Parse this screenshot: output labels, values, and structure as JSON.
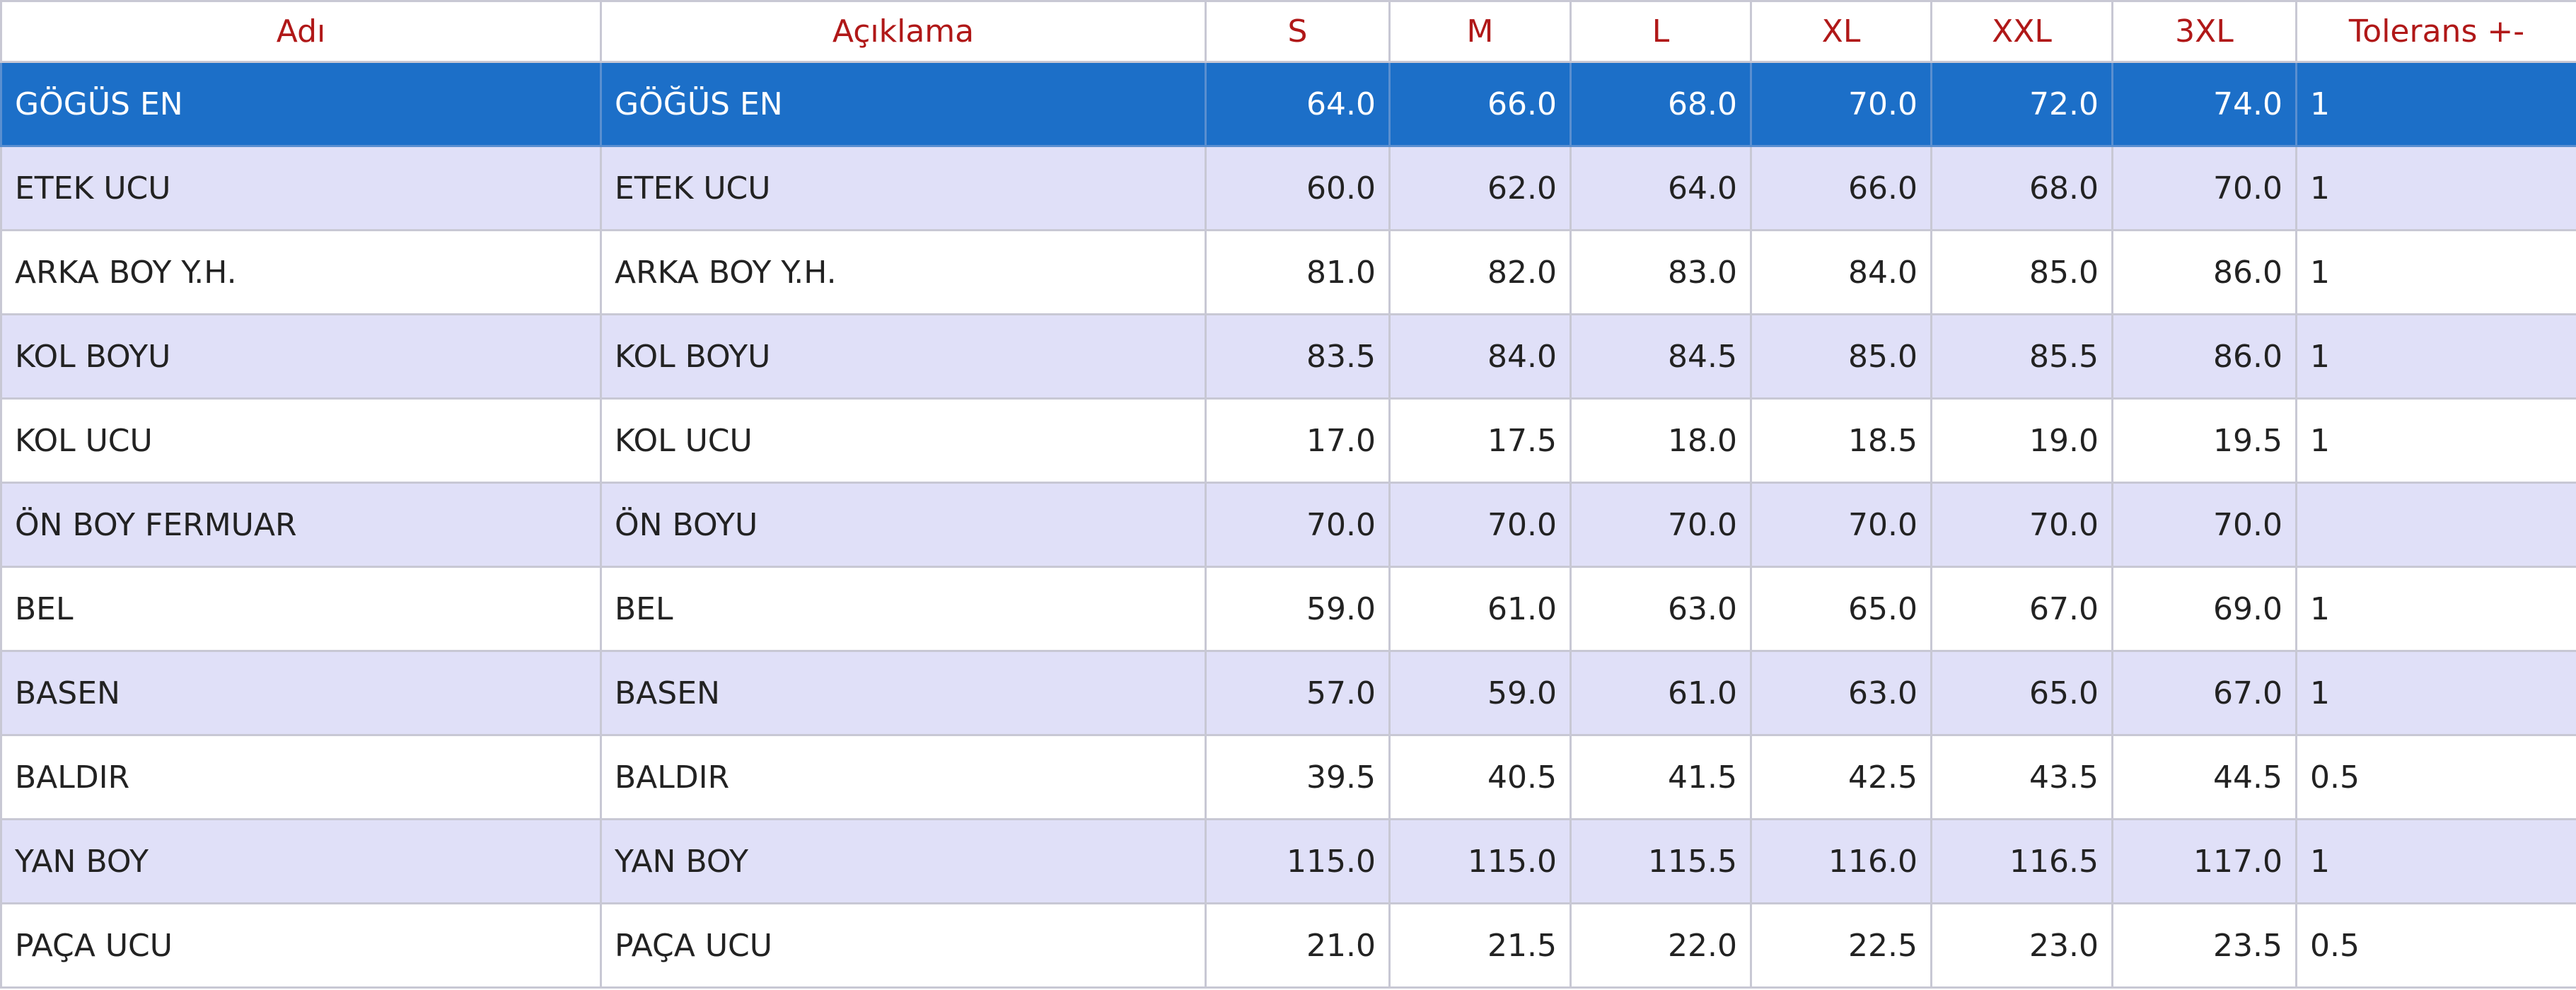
{
  "table": {
    "headers": [
      "Adı",
      "Açıklama",
      "S",
      "M",
      "L",
      "XL",
      "XXL",
      "3XL",
      "Tolerans +-"
    ],
    "selected_row": 0,
    "rows": [
      [
        "GÖGÜS EN",
        "GÖĞÜS EN",
        "64.0",
        "66.0",
        "68.0",
        "70.0",
        "72.0",
        "74.0",
        "1"
      ],
      [
        "ETEK UCU",
        "ETEK UCU",
        "60.0",
        "62.0",
        "64.0",
        "66.0",
        "68.0",
        "70.0",
        "1"
      ],
      [
        "ARKA BOY Y.H.",
        "ARKA BOY Y.H.",
        "81.0",
        "82.0",
        "83.0",
        "84.0",
        "85.0",
        "86.0",
        "1"
      ],
      [
        "KOL BOYU",
        "KOL BOYU",
        "83.5",
        "84.0",
        "84.5",
        "85.0",
        "85.5",
        "86.0",
        "1"
      ],
      [
        "KOL UCU",
        "KOL UCU",
        "17.0",
        "17.5",
        "18.0",
        "18.5",
        "19.0",
        "19.5",
        "1"
      ],
      [
        "ÖN BOY FERMUAR",
        "ÖN BOYU",
        "70.0",
        "70.0",
        "70.0",
        "70.0",
        "70.0",
        "70.0",
        null
      ],
      [
        "BEL",
        "BEL",
        "59.0",
        "61.0",
        "63.0",
        "65.0",
        "67.0",
        "69.0",
        "1"
      ],
      [
        "BASEN",
        "BASEN",
        "57.0",
        "59.0",
        "61.0",
        "63.0",
        "65.0",
        "67.0",
        "1"
      ],
      [
        "BALDIR",
        "BALDIR",
        "39.5",
        "40.5",
        "41.5",
        "42.5",
        "43.5",
        "44.5",
        "0.5"
      ],
      [
        "YAN BOY",
        "YAN BOY",
        "115.0",
        "115.0",
        "115.5",
        "116.0",
        "116.5",
        "117.0",
        "1"
      ],
      [
        "PAÇA UCU",
        "PAÇA UCU",
        "21.0",
        "21.5",
        "22.0",
        "22.5",
        "23.0",
        "23.5",
        "0.5"
      ]
    ]
  }
}
